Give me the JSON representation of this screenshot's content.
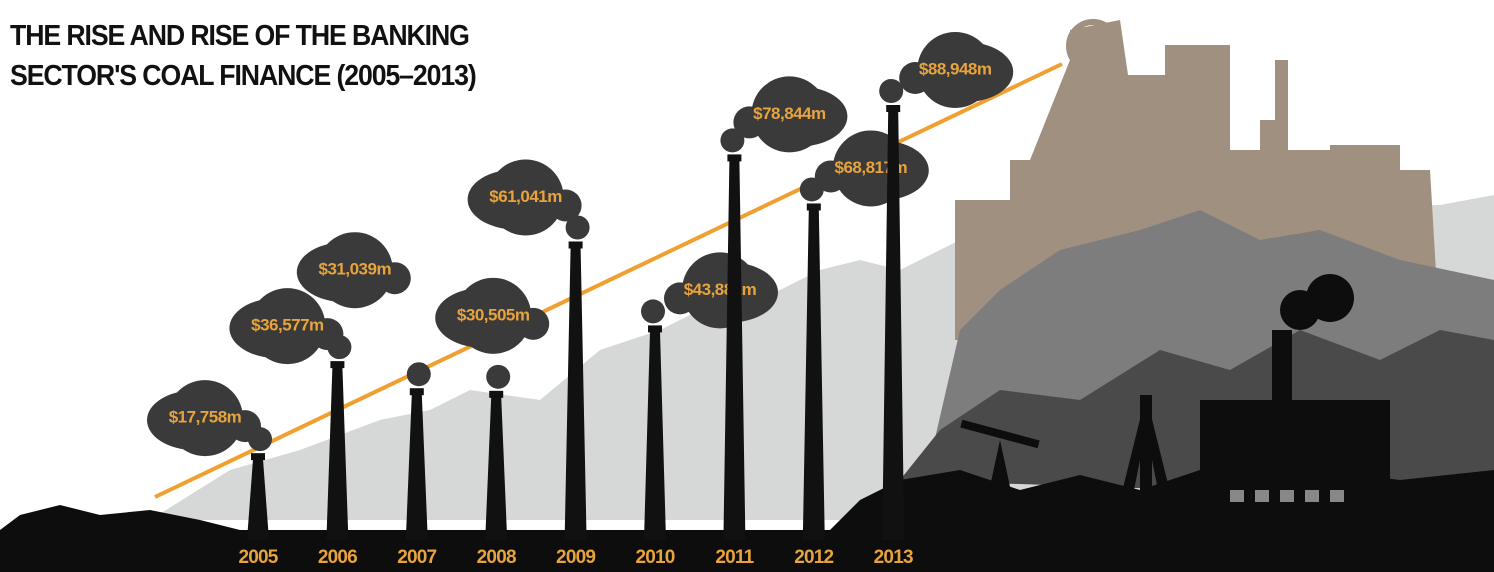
{
  "chart_data": {
    "type": "bar",
    "title": "THE RISE AND RISE OF THE BANKING SECTOR'S COAL FINANCE (2005–2013)",
    "categories": [
      "2005",
      "2006",
      "2007",
      "2008",
      "2009",
      "2010",
      "2011",
      "2012",
      "2013"
    ],
    "values": [
      17758,
      36577,
      31039,
      30505,
      61041,
      43881,
      78844,
      68817,
      88948
    ],
    "value_labels": [
      "$17,758m",
      "$36,577m",
      "$31,039m",
      "$30,505m",
      "$61,041m",
      "$43,881m",
      "$78,844m",
      "$68,817m",
      "$88,948m"
    ],
    "color": "#111111"
  }
}
